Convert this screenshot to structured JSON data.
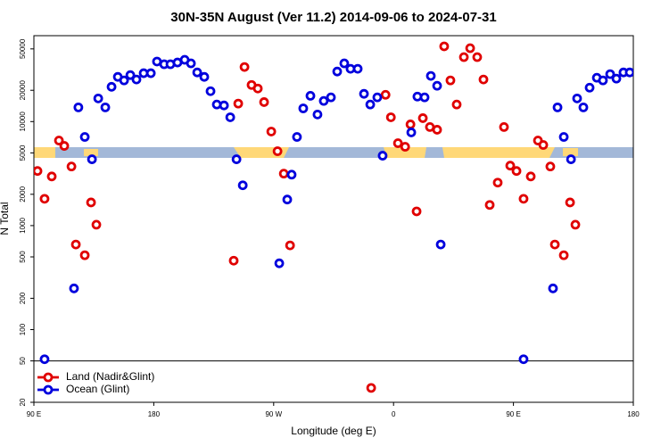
{
  "chart_data": {
    "type": "scatter",
    "title": "30N-35N August (Ver 11.2)   2014-09-06 to 2024-07-31",
    "x_label": "Longitude (deg E)",
    "y_label": "N Total",
    "log_y": true,
    "xlim": [
      90,
      540
    ],
    "xticks": [
      {
        "value": 90,
        "label": "90 E"
      },
      180,
      {
        "value": 270,
        "label": "90 W"
      },
      {
        "value": 360,
        "label": "0"
      },
      {
        "value": 450,
        "label": "90 E"
      },
      {
        "value": 540,
        "label": "180"
      }
    ],
    "ylim": [
      20,
      67000
    ],
    "yticks": [
      20,
      50,
      100,
      200,
      500,
      1000,
      2000,
      5000,
      10000,
      20000,
      50000
    ],
    "reference_line": 50,
    "legend": "lower left",
    "series": [
      {
        "name": "Land (Nadir&Glint)",
        "color": "#e00000",
        "x": [
          92.7,
          98,
          103.4,
          108.8,
          112.8,
          118.2,
          121.5,
          128.2,
          132.9,
          136.9,
          240,
          243.4,
          248.1,
          253.4,
          258.1,
          262.8,
          268.2,
          272.9,
          277.6,
          282.3,
          343.2,
          354,
          358,
          363.3,
          368.7,
          372.7,
          377.3,
          382,
          387.3,
          392.7,
          398,
          402.7,
          407.4,
          412.8,
          417.5,
          422.8,
          427.5,
          432.2,
          438.2,
          442.9,
          447.6,
          452.3,
          457.6,
          463,
          468.4,
          472.4,
          477.7,
          481.1,
          487.8,
          492.5,
          496.5
        ],
        "values": [
          3350,
          1810,
          2970,
          6580,
          5840,
          3700,
          658,
          519,
          1670,
          1020,
          460,
          14900,
          33500,
          22500,
          20800,
          15400,
          8020,
          5190,
          3160,
          645,
          27.5,
          18100,
          11000,
          6200,
          5730,
          9400,
          1370,
          10800,
          8870,
          8350,
          52900,
          24900,
          14600,
          41700,
          50800,
          41700,
          25400,
          1580,
          2590,
          8870,
          3770,
          3350,
          1810,
          2970,
          6580,
          5960,
          3700,
          658,
          519,
          1670,
          1020
        ]
      },
      {
        "name": "Ocean (Glint)",
        "color": "#0000dd",
        "x": [
          98,
          120.1,
          123.4,
          128.2,
          133.6,
          138.3,
          143.6,
          148.3,
          153,
          157.7,
          162.4,
          167,
          172.4,
          177.8,
          182.4,
          187.8,
          192.5,
          197.8,
          203.2,
          207.9,
          212.6,
          217.9,
          222.6,
          227.3,
          232.7,
          237.4,
          242.1,
          246.8,
          274.2,
          280.2,
          283.5,
          287.5,
          292.2,
          297.6,
          302.9,
          307.6,
          313,
          317.7,
          323,
          327.7,
          333.1,
          337.8,
          342.5,
          347.8,
          351.8,
          373.3,
          377.9,
          383.3,
          388,
          392.7,
          395.4,
          457.6,
          479.7,
          483.1,
          487.8,
          493.2,
          497.8,
          502.5,
          507.2,
          512.6,
          517.2,
          522.6,
          527.3,
          532.6,
          537.3
        ],
        "values": [
          51.9,
          249,
          13700,
          7120,
          4340,
          16700,
          13700,
          21600,
          26900,
          24900,
          28000,
          25400,
          29200,
          29200,
          37800,
          35600,
          35600,
          37000,
          39300,
          36300,
          29700,
          26900,
          19600,
          14600,
          14300,
          11000,
          4340,
          2440,
          434,
          1780,
          3090,
          7120,
          13400,
          17700,
          11700,
          15800,
          17100,
          30300,
          36300,
          32200,
          32200,
          18500,
          14600,
          17100,
          4700,
          7870,
          17400,
          17100,
          27500,
          22100,
          658,
          51.9,
          249,
          13700,
          7120,
          4340,
          16700,
          13700,
          21200,
          26400,
          24900,
          28600,
          25900,
          29700,
          29700
        ]
      }
    ]
  }
}
